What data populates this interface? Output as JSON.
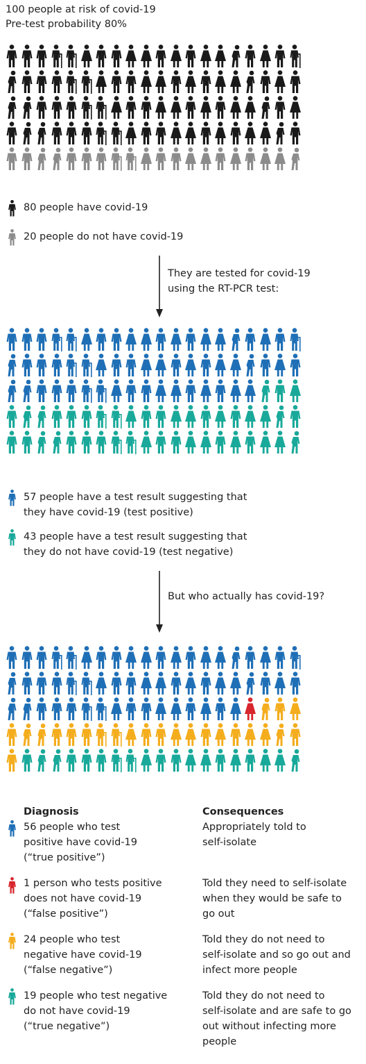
{
  "colors": {
    "covid": "#1a1a1a",
    "no_covid": "#8c8c8c",
    "test_positive": "#1f6fb6",
    "test_negative": "#19a99a",
    "true_positive": "#1f6fb6",
    "false_positive": "#d7262d",
    "false_negative": "#f4ad1d",
    "true_negative": "#19a99a"
  },
  "intro": {
    "line1": "100 people at risk of covid-19",
    "line2": "Pre-test probability 80%"
  },
  "grid1": {
    "groups": [
      {
        "category": "covid",
        "count": 80
      },
      {
        "category": "no_covid",
        "count": 20
      }
    ]
  },
  "legend1": {
    "covid": "80 people have covid-19",
    "no_covid": "20 people do not have covid-19"
  },
  "step1": {
    "line1": "They are  tested for covid-19",
    "line2": "using the RT-PCR test:"
  },
  "grid2": {
    "groups": [
      {
        "category": "test_positive",
        "count": 57
      },
      {
        "category": "test_negative",
        "count": 43
      }
    ]
  },
  "legend2": {
    "positive_line1": "57 people have a test result suggesting that",
    "positive_line2": "they have covid-19 (test positive)",
    "negative_line1": "43 people have a test result suggesting that",
    "negative_line2": "they do not have covid-19 (test negative)"
  },
  "step2": {
    "line1": "But who actually has covid-19?"
  },
  "grid3": {
    "groups": [
      {
        "category": "true_positive",
        "count": 56
      },
      {
        "category": "false_positive",
        "count": 1
      },
      {
        "category": "false_negative",
        "count": 24
      },
      {
        "category": "true_negative",
        "count": 19
      }
    ]
  },
  "table": {
    "diagnosis_header": "Diagnosis",
    "consequences_header": "Consequences",
    "rows": [
      {
        "category": "true_positive",
        "diagnosis": [
          "56 people who test",
          "positive have covid-19",
          "(“true positive”)"
        ],
        "consequence": [
          "Appropriately told to",
          "self-isolate"
        ]
      },
      {
        "category": "false_positive",
        "diagnosis": [
          "1 person who tests positive",
          "does not have covid-19",
          "(“false positive”)"
        ],
        "consequence": [
          "Told they need to self-isolate",
          "when they would be safe to",
          "go out"
        ]
      },
      {
        "category": "false_negative",
        "diagnosis": [
          "24 people who test",
          "negative have covid-19",
          "(“false negative”)"
        ],
        "consequence": [
          "Told they do not need to",
          "self-isolate and so go out and",
          "infect more people"
        ]
      },
      {
        "category": "true_negative",
        "diagnosis": [
          "19 people who test negative",
          "do not have covid-19",
          "(“true negative”)"
        ],
        "consequence": [
          "Told they do not need to",
          "self-isolate and are safe to go",
          "out without infecting more",
          "people"
        ]
      }
    ]
  }
}
